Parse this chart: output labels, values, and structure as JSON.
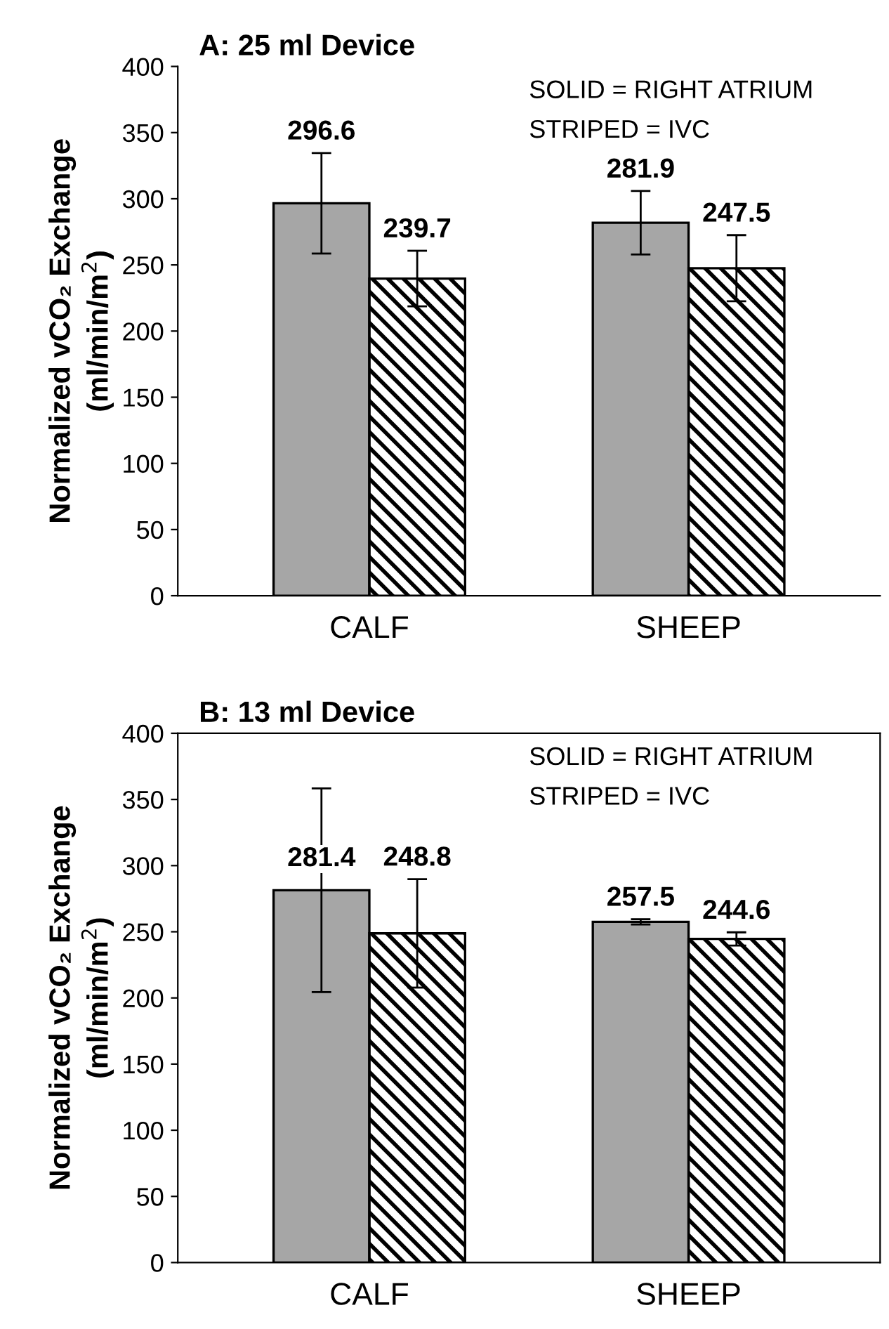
{
  "chart_data": [
    {
      "type": "bar",
      "title": "A: 25 ml Device",
      "ylabel": "Normalized vCO₂ Exchange\n(ml/min/m$^{2}$)",
      "categories": [
        "CALF",
        "SHEEP"
      ],
      "series": [
        {
          "color": "#a6a6a6",
          "values": [
            296.6,
            281.9
          ],
          "errors": [
            38,
            24
          ]
        },
        {
          "color": "#000000",
          "values": [
            239.7,
            247.5
          ],
          "errors": [
            21,
            25
          ]
        }
      ],
      "data_labels": true,
      "ylim": [
        0,
        400
      ],
      "yticks": [
        0,
        50,
        100,
        150,
        200,
        250,
        300,
        350,
        400
      ],
      "grid": false,
      "legend": false,
      "annotations": [
        "SOLID = RIGHT ATRIUM",
        "STRIPED = IVC"
      ]
    },
    {
      "type": "bar",
      "title": "B: 13 ml Device",
      "ylabel": "Normalized vCO₂ Exchange\n(ml/min/m$^{2}$)",
      "categories": [
        "CALF",
        "SHEEP"
      ],
      "series": [
        {
          "color": "#a6a6a6",
          "values": [
            281.4,
            257.5
          ],
          "errors": [
            77,
            2
          ]
        },
        {
          "color": "#000000",
          "values": [
            248.8,
            244.6
          ],
          "errors": [
            41,
            5
          ]
        }
      ],
      "data_labels": true,
      "ylim": [
        0,
        400
      ],
      "yticks": [
        0,
        50,
        100,
        150,
        200,
        250,
        300,
        350,
        400
      ],
      "grid": false,
      "legend": false,
      "annotations": [
        "SOLID = RIGHT ATRIUM",
        "STRIPED = IVC"
      ]
    }
  ]
}
